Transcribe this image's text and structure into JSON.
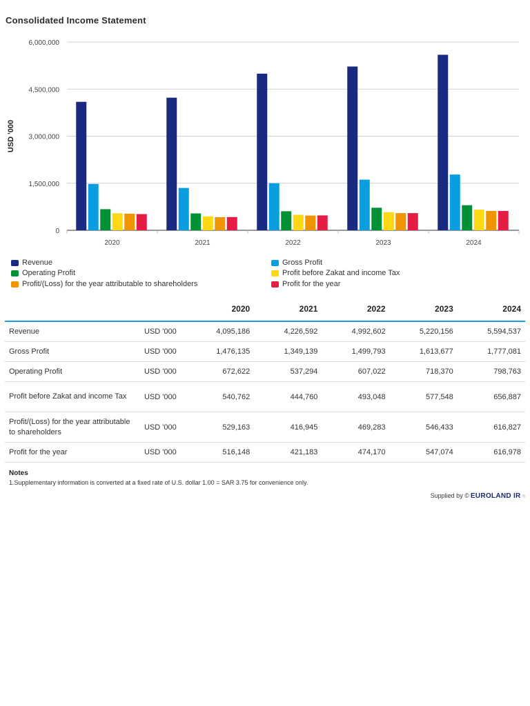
{
  "page": {
    "title": "Consolidated Income Statement"
  },
  "chart_data": {
    "type": "bar",
    "title": "Consolidated Income Statement",
    "xlabel": "",
    "ylabel": "USD '000",
    "ylim": [
      0,
      6000000
    ],
    "yticks": [
      0,
      1500000,
      3000000,
      4500000,
      6000000
    ],
    "ytick_labels": [
      "0",
      "1,500,000",
      "3,000,000",
      "4,500,000",
      "6,000,000"
    ],
    "grid": true,
    "legend_position": "bottom",
    "categories": [
      "2020",
      "2021",
      "2022",
      "2023",
      "2024"
    ],
    "series": [
      {
        "name": "Revenue",
        "color": "#1a2a80",
        "values": [
          4095186,
          4226592,
          4992602,
          5220156,
          5594537
        ]
      },
      {
        "name": "Gross Profit",
        "color": "#0a9ee0",
        "values": [
          1476135,
          1349139,
          1499793,
          1613677,
          1777081
        ]
      },
      {
        "name": "Operating Profit",
        "color": "#009136",
        "values": [
          672622,
          537294,
          607022,
          718370,
          798763
        ]
      },
      {
        "name": "Profit before Zakat and income Tax",
        "color": "#ffd814",
        "values": [
          540762,
          444760,
          493048,
          577548,
          656887
        ]
      },
      {
        "name": "Profit/(Loss) for the year attributable to shareholders",
        "color": "#f09400",
        "values": [
          529163,
          416945,
          469283,
          546433,
          616827
        ]
      },
      {
        "name": "Profit for the year",
        "color": "#e51d44",
        "values": [
          516148,
          421183,
          474170,
          547074,
          616978
        ]
      }
    ]
  },
  "legend": [
    {
      "label": "Revenue",
      "color": "#1a2a80"
    },
    {
      "label": "Gross Profit",
      "color": "#0a9ee0"
    },
    {
      "label": "Operating Profit",
      "color": "#009136"
    },
    {
      "label": "Profit before Zakat and income Tax",
      "color": "#ffd814"
    },
    {
      "label": "Profit/(Loss) for the year attributable to shareholders",
      "color": "#f09400"
    },
    {
      "label": "Profit for the year",
      "color": "#e51d44"
    }
  ],
  "table": {
    "headers": [
      "",
      "",
      "2020",
      "2021",
      "2022",
      "2023",
      "2024"
    ],
    "rows": [
      {
        "label": "Revenue",
        "unit": "USD '000",
        "values": [
          "4,095,186",
          "4,226,592",
          "4,992,602",
          "5,220,156",
          "5,594,537"
        ]
      },
      {
        "label": "Gross Profit",
        "unit": "USD '000",
        "values": [
          "1,476,135",
          "1,349,139",
          "1,499,793",
          "1,613,677",
          "1,777,081"
        ]
      },
      {
        "label": "Operating Profit",
        "unit": "USD '000",
        "values": [
          "672,622",
          "537,294",
          "607,022",
          "718,370",
          "798,763"
        ]
      },
      {
        "label": "Profit before Zakat and income Tax",
        "unit": "USD '000",
        "values": [
          "540,762",
          "444,760",
          "493,048",
          "577,548",
          "656,887"
        ]
      },
      {
        "label": "Profit/(Loss) for the year attributable to shareholders",
        "unit": "USD '000",
        "values": [
          "529,163",
          "416,945",
          "469,283",
          "546,433",
          "616,827"
        ]
      },
      {
        "label": "Profit for the year",
        "unit": "USD '000",
        "values": [
          "516,148",
          "421,183",
          "474,170",
          "547,074",
          "616,978"
        ]
      }
    ]
  },
  "notes": {
    "title": "Notes",
    "text": "1.Supplementary information is converted at a fixed rate of U.S. dollar 1.00 = SAR 3.75 for convenience only."
  },
  "footer": {
    "supplied_by": "Supplied by ©",
    "brand": "EUROLAND IR",
    "reg": "®"
  }
}
